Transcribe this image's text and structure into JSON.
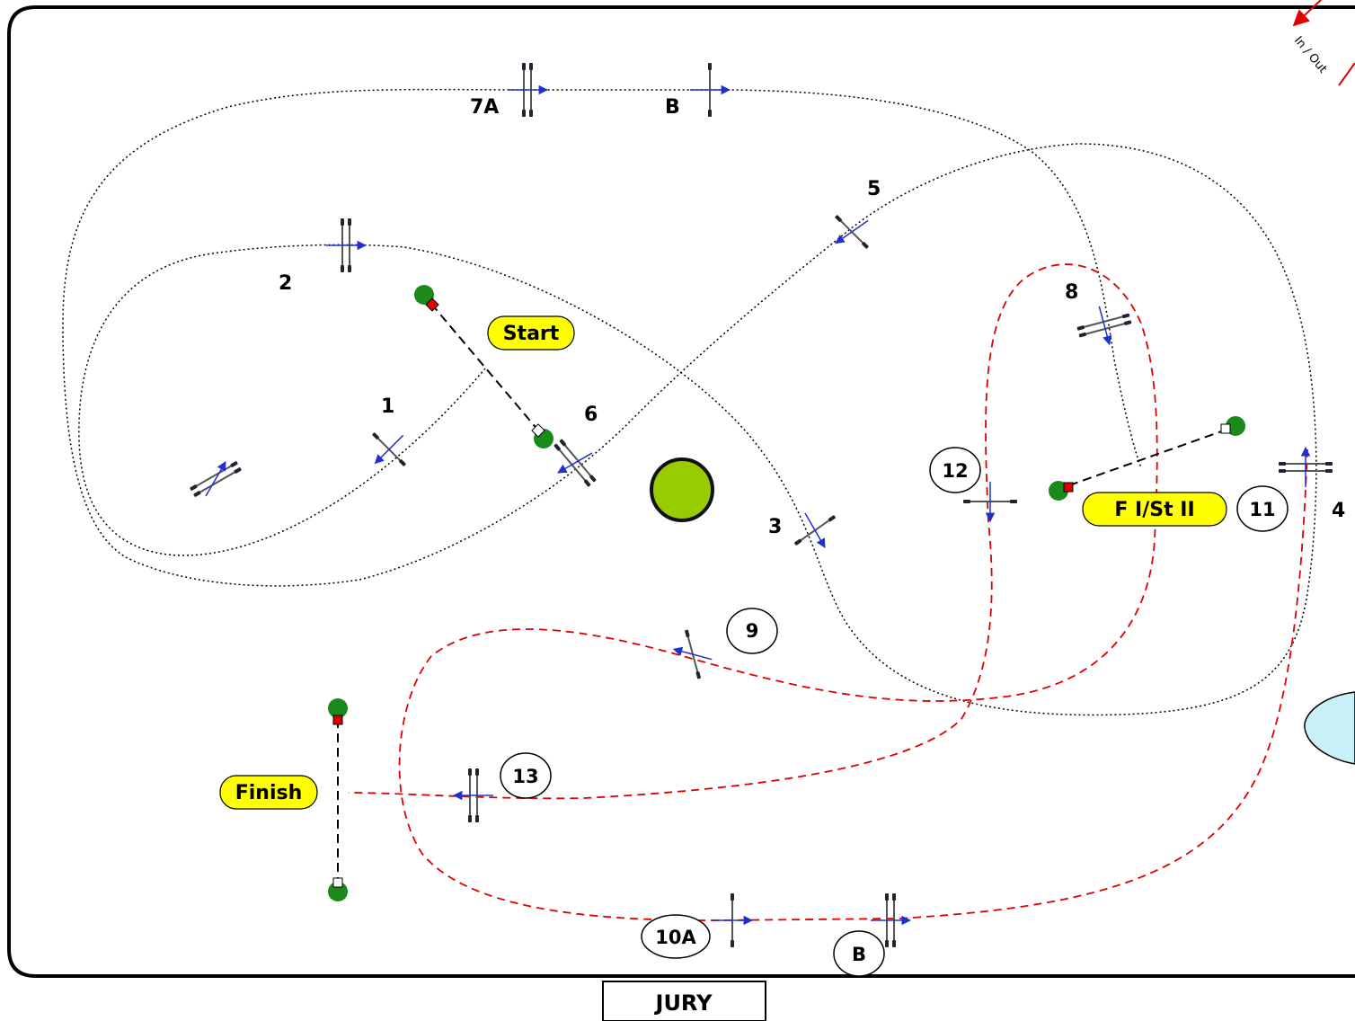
{
  "arena": {
    "jury_label": "JURY",
    "in_out_label": "In / Out",
    "start_label": "Start",
    "finish_label": "Finish",
    "class_label": "F I/St II",
    "colors": {
      "course_line": "#000000",
      "red_course_line": "#e00000",
      "label_fill": "#ffff00",
      "pond": "#c8f0f8",
      "pond_center": "#99cc00",
      "arrow": "#2030d0"
    }
  },
  "obstacles_black": [
    {
      "id": "1",
      "label": "1"
    },
    {
      "id": "2",
      "label": "2"
    },
    {
      "id": "3",
      "label": "3"
    },
    {
      "id": "4",
      "label": "4"
    },
    {
      "id": "5",
      "label": "5"
    },
    {
      "id": "6",
      "label": "6"
    },
    {
      "id": "7a",
      "label": "7A"
    },
    {
      "id": "7b",
      "label": "B"
    },
    {
      "id": "8",
      "label": "8"
    }
  ],
  "obstacles_circled": [
    {
      "id": "9",
      "label": "9"
    },
    {
      "id": "10a",
      "label": "10A"
    },
    {
      "id": "10b",
      "label": "B"
    },
    {
      "id": "11",
      "label": "11"
    },
    {
      "id": "12",
      "label": "12"
    },
    {
      "id": "13",
      "label": "13"
    }
  ]
}
